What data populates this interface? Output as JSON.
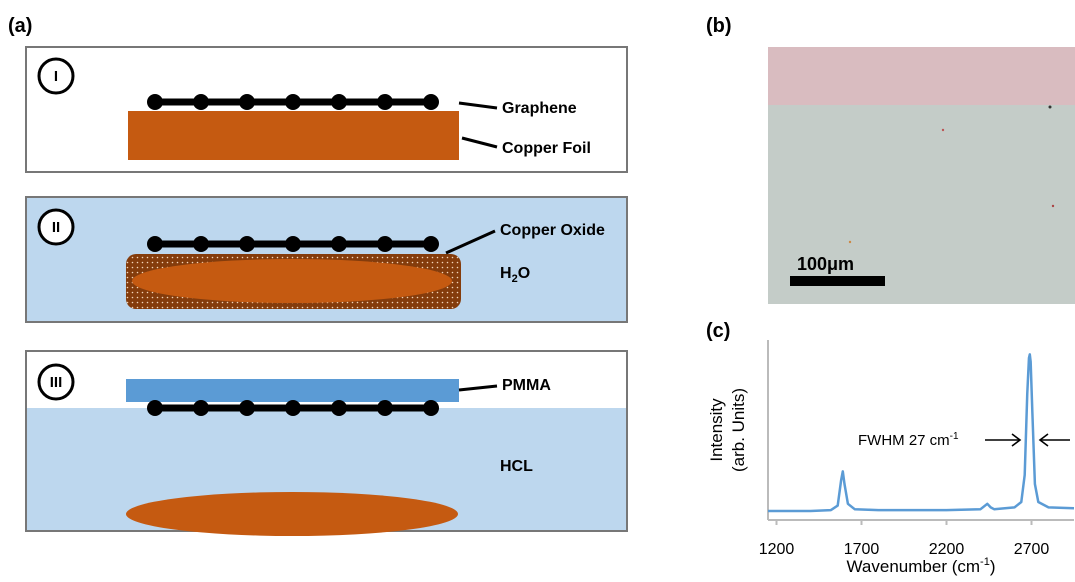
{
  "figure": {
    "panel_a": {
      "label": "(a)",
      "steps": [
        "I",
        "II",
        "III"
      ],
      "graphene": "Graphene",
      "copper_foil": "Copper Foil",
      "copper_oxide": "Copper Oxide",
      "water": {
        "base": "H",
        "sub": "2",
        "rest": "O"
      },
      "pmma": "PMMA",
      "acid": "HCL"
    },
    "panel_b": {
      "label": "(b)",
      "scale_bar": "100μm"
    },
    "panel_c": {
      "label": "(c)"
    }
  },
  "chart_data": {
    "type": "line",
    "ylabel": [
      "Intensity",
      "(arb. Units)"
    ],
    "xlabel": {
      "text": "Wavenumber (cm",
      "sup": "-1",
      "end": ")"
    },
    "annotation": {
      "text": "FWHM 27 cm",
      "sup": "-1"
    },
    "x": [
      1150,
      1400,
      1520,
      1560,
      1580,
      1590,
      1600,
      1620,
      1660,
      1800,
      2200,
      2400,
      2440,
      2460,
      2480,
      2600,
      2640,
      2660,
      2675,
      2685,
      2690,
      2695,
      2705,
      2720,
      2740,
      2800,
      2950
    ],
    "series": [
      {
        "color": "#5b9bd5",
        "values": [
          5,
          5,
          5.5,
          8,
          22,
          27,
          20,
          9,
          6,
          5.5,
          5.5,
          6,
          9,
          7,
          6,
          7,
          10,
          25,
          70,
          90,
          92,
          88,
          60,
          20,
          10,
          7,
          6.5
        ]
      }
    ],
    "xlim": [
      1150,
      2950
    ],
    "xticks": [
      1200,
      1700,
      2200,
      2700
    ],
    "ylim": [
      0,
      100
    ]
  }
}
